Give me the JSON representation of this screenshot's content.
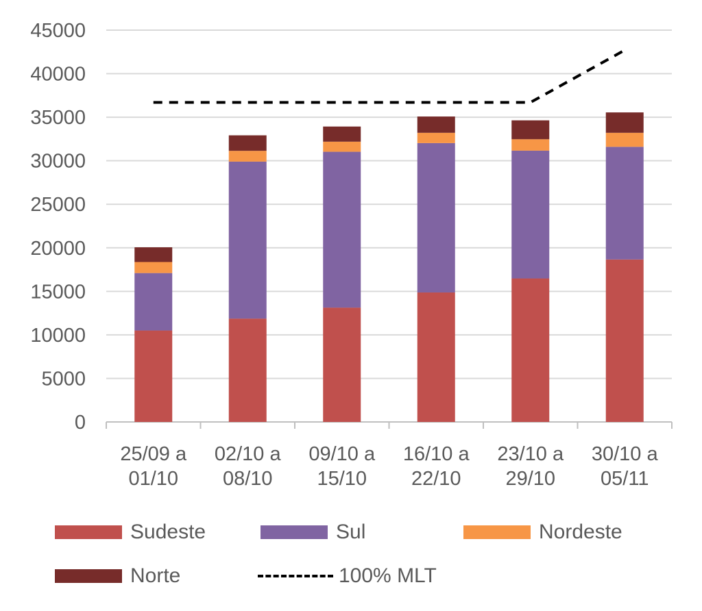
{
  "chart_data": {
    "type": "bar",
    "stacked": true,
    "title": "",
    "xlabel": "",
    "ylabel": "",
    "ylim": [
      0,
      45000
    ],
    "yticks": [
      0,
      5000,
      10000,
      15000,
      20000,
      25000,
      30000,
      35000,
      40000,
      45000
    ],
    "grid": true,
    "legend_position": "bottom",
    "categories": [
      [
        "25/09 a",
        "01/10"
      ],
      [
        "02/10 a",
        "08/10"
      ],
      [
        "09/10 a",
        "15/10"
      ],
      [
        "16/10 a",
        "22/10"
      ],
      [
        "23/10 a",
        "29/10"
      ],
      [
        "30/10 a",
        "05/11"
      ]
    ],
    "series": [
      {
        "name": "Sudeste",
        "color": "#C0504D",
        "values": [
          10500,
          11870,
          13130,
          14870,
          16480,
          18660
        ]
      },
      {
        "name": "Sul",
        "color": "#8064A2",
        "values": [
          6600,
          18030,
          17900,
          17160,
          14680,
          12940
        ]
      },
      {
        "name": "Nordeste",
        "color": "#F79646",
        "values": [
          1270,
          1240,
          1160,
          1180,
          1310,
          1610
        ]
      },
      {
        "name": "Norte",
        "color": "#772C2A",
        "values": [
          1690,
          1780,
          1740,
          1870,
          2170,
          2340
        ]
      }
    ],
    "line": {
      "name": "100% MLT",
      "color": "#000000",
      "style": "dashed",
      "values": [
        36700,
        36700,
        36700,
        36700,
        36700,
        42700
      ]
    }
  }
}
